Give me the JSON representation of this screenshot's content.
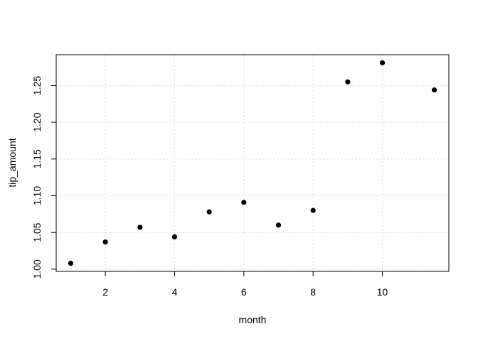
{
  "chart_data": {
    "type": "scatter",
    "x_label": "month",
    "y_label": "tip_amount",
    "x": [
      1,
      2,
      3,
      4,
      5,
      6,
      7,
      8,
      9,
      10,
      11.5
    ],
    "series": [
      {
        "color": "#000000",
        "values": [
          1.008,
          1.037,
          1.057,
          1.044,
          1.078,
          1.091,
          1.06,
          1.08,
          1.255,
          1.281,
          1.244
        ]
      }
    ],
    "xlim": [
      0.58,
      11.92
    ],
    "ylim": [
      0.997,
      1.292
    ],
    "xticks": [
      2,
      4,
      6,
      8,
      10
    ],
    "yticks": [
      {
        "value": 1.0,
        "label": "1.00"
      },
      {
        "value": 1.05,
        "label": "1.05"
      },
      {
        "value": 1.1,
        "label": "1.10"
      },
      {
        "value": 1.15,
        "label": "1.15"
      },
      {
        "value": 1.2,
        "label": "1.20"
      },
      {
        "value": 1.25,
        "label": "1.25"
      }
    ],
    "grid": true
  }
}
